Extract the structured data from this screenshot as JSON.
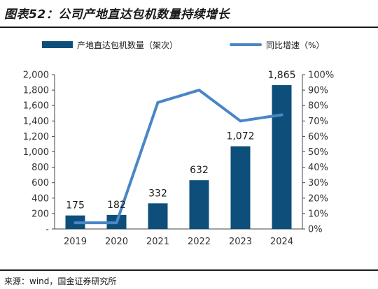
{
  "page": {
    "title": "图表52：公司产地直达包机数量持续增长",
    "source": "来源：wind，国金证券研究所"
  },
  "chart_data": {
    "type": "bar",
    "categories": [
      "2019",
      "2020",
      "2021",
      "2022",
      "2023",
      "2024"
    ],
    "series": [
      {
        "name": "产地直达包机数量（架次）",
        "type": "bar",
        "axis": "left",
        "color": "#0d4f7a",
        "values": [
          175,
          182,
          332,
          632,
          1072,
          1865
        ],
        "data_labels": [
          "175",
          "182",
          "332",
          "632",
          "1,072",
          "1,865"
        ]
      },
      {
        "name": "同比增速（%）",
        "type": "line",
        "axis": "right",
        "color": "#4a86c5",
        "values": [
          4,
          4,
          82,
          90,
          70,
          74
        ]
      }
    ],
    "y_left": {
      "ylim": [
        0,
        2000
      ],
      "tick_labels": [
        "-",
        "200",
        "400",
        "600",
        "800",
        "1,000",
        "1,200",
        "1,400",
        "1,600",
        "1,800",
        "2,000"
      ]
    },
    "y_right": {
      "ylim": [
        0,
        100
      ],
      "tick_labels": [
        "0%",
        "10%",
        "20%",
        "30%",
        "40%",
        "50%",
        "60%",
        "70%",
        "80%",
        "90%",
        "100%"
      ]
    },
    "grid": false,
    "legend_position": "top"
  }
}
